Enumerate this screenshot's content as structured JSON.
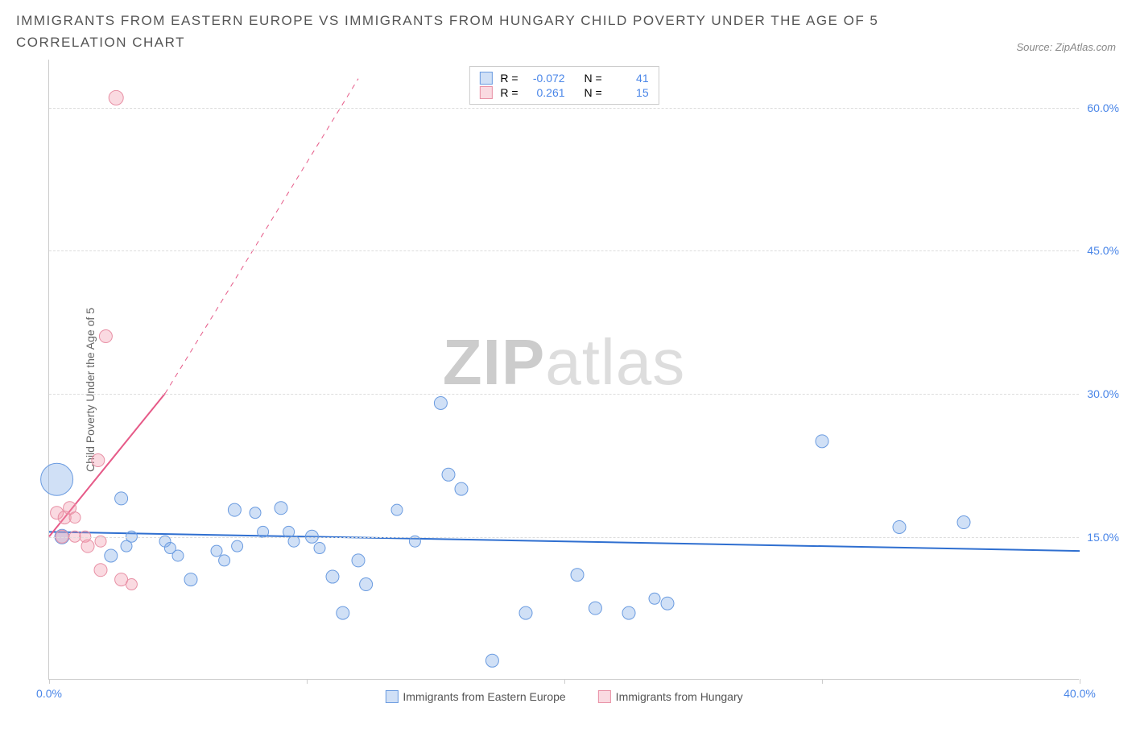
{
  "title": "IMMIGRANTS FROM EASTERN EUROPE VS IMMIGRANTS FROM HUNGARY CHILD POVERTY UNDER THE AGE OF 5 CORRELATION CHART",
  "source_label": "Source: ZipAtlas.com",
  "y_axis_label": "Child Poverty Under the Age of 5",
  "watermark_zip": "ZIP",
  "watermark_atlas": "atlas",
  "chart": {
    "type": "scatter",
    "xlim": [
      0,
      40
    ],
    "ylim": [
      0,
      65
    ],
    "x_ticks": [
      0,
      10,
      20,
      30,
      40
    ],
    "x_tick_labels": [
      "0.0%",
      "",
      "",
      "",
      "40.0%"
    ],
    "y_grid": [
      15,
      30,
      45,
      60
    ],
    "y_grid_labels": [
      "15.0%",
      "30.0%",
      "45.0%",
      "60.0%"
    ],
    "grid_color": "#dddddd",
    "axis_color": "#cccccc",
    "background_color": "#ffffff"
  },
  "series": [
    {
      "name": "Immigrants from Eastern Europe",
      "fill": "rgba(120,165,230,0.35)",
      "stroke": "#6a9be0",
      "trend_color": "#2f6fd0",
      "trend_width": 2,
      "trend_dash": "none",
      "trend": {
        "x1": 0,
        "y1": 15.5,
        "x2": 40,
        "y2": 13.5
      },
      "stats": {
        "R": "-0.072",
        "N": "41"
      },
      "points": [
        {
          "x": 0.3,
          "y": 21,
          "r": 20
        },
        {
          "x": 0.5,
          "y": 15,
          "r": 9
        },
        {
          "x": 2.8,
          "y": 19,
          "r": 8
        },
        {
          "x": 3.2,
          "y": 15,
          "r": 7
        },
        {
          "x": 2.4,
          "y": 13,
          "r": 8
        },
        {
          "x": 3.0,
          "y": 14,
          "r": 7
        },
        {
          "x": 4.5,
          "y": 14.5,
          "r": 7
        },
        {
          "x": 4.7,
          "y": 13.8,
          "r": 7
        },
        {
          "x": 5.0,
          "y": 13.0,
          "r": 7
        },
        {
          "x": 5.5,
          "y": 10.5,
          "r": 8
        },
        {
          "x": 6.5,
          "y": 13.5,
          "r": 7
        },
        {
          "x": 6.8,
          "y": 12.5,
          "r": 7
        },
        {
          "x": 7.2,
          "y": 17.8,
          "r": 8
        },
        {
          "x": 7.3,
          "y": 14.0,
          "r": 7
        },
        {
          "x": 8.0,
          "y": 17.5,
          "r": 7
        },
        {
          "x": 8.3,
          "y": 15.5,
          "r": 7
        },
        {
          "x": 9.0,
          "y": 18.0,
          "r": 8
        },
        {
          "x": 9.3,
          "y": 15.5,
          "r": 7
        },
        {
          "x": 9.5,
          "y": 14.5,
          "r": 7
        },
        {
          "x": 10.2,
          "y": 15.0,
          "r": 8
        },
        {
          "x": 10.5,
          "y": 13.8,
          "r": 7
        },
        {
          "x": 11.0,
          "y": 10.8,
          "r": 8
        },
        {
          "x": 11.4,
          "y": 7.0,
          "r": 8
        },
        {
          "x": 12.0,
          "y": 12.5,
          "r": 8
        },
        {
          "x": 12.3,
          "y": 10.0,
          "r": 8
        },
        {
          "x": 13.5,
          "y": 17.8,
          "r": 7
        },
        {
          "x": 14.2,
          "y": 14.5,
          "r": 7
        },
        {
          "x": 15.2,
          "y": 29.0,
          "r": 8
        },
        {
          "x": 15.5,
          "y": 21.5,
          "r": 8
        },
        {
          "x": 16.0,
          "y": 20.0,
          "r": 8
        },
        {
          "x": 17.2,
          "y": 2.0,
          "r": 8
        },
        {
          "x": 18.5,
          "y": 7.0,
          "r": 8
        },
        {
          "x": 20.5,
          "y": 11.0,
          "r": 8
        },
        {
          "x": 21.2,
          "y": 7.5,
          "r": 8
        },
        {
          "x": 22.5,
          "y": 7.0,
          "r": 8
        },
        {
          "x": 23.5,
          "y": 8.5,
          "r": 7
        },
        {
          "x": 24.0,
          "y": 8.0,
          "r": 8
        },
        {
          "x": 30.0,
          "y": 25.0,
          "r": 8
        },
        {
          "x": 33.0,
          "y": 16.0,
          "r": 8
        },
        {
          "x": 35.5,
          "y": 16.5,
          "r": 8
        }
      ]
    },
    {
      "name": "Immigrants from Hungary",
      "fill": "rgba(240,150,170,0.35)",
      "stroke": "#e890a5",
      "trend_color": "#e65a88",
      "trend_width": 2,
      "trend_dash": "solid_then_dash",
      "trend": {
        "x1": 0,
        "y1": 15,
        "x2_solid": 4.5,
        "y2_solid": 30,
        "x2": 12,
        "y2": 63
      },
      "stats": {
        "R": "0.261",
        "N": "15"
      },
      "points": [
        {
          "x": 0.3,
          "y": 17.5,
          "r": 8
        },
        {
          "x": 0.6,
          "y": 17.0,
          "r": 8
        },
        {
          "x": 0.8,
          "y": 18.0,
          "r": 8
        },
        {
          "x": 0.5,
          "y": 15.0,
          "r": 8
        },
        {
          "x": 1.0,
          "y": 17.0,
          "r": 7
        },
        {
          "x": 1.0,
          "y": 15.0,
          "r": 7
        },
        {
          "x": 1.4,
          "y": 15.0,
          "r": 7
        },
        {
          "x": 1.5,
          "y": 14.0,
          "r": 8
        },
        {
          "x": 1.9,
          "y": 23.0,
          "r": 8
        },
        {
          "x": 2.0,
          "y": 11.5,
          "r": 8
        },
        {
          "x": 2.0,
          "y": 14.5,
          "r": 7
        },
        {
          "x": 2.2,
          "y": 36.0,
          "r": 8
        },
        {
          "x": 2.8,
          "y": 10.5,
          "r": 8
        },
        {
          "x": 3.2,
          "y": 10.0,
          "r": 7
        },
        {
          "x": 2.6,
          "y": 61.0,
          "r": 9
        }
      ]
    }
  ],
  "legend_labels": {
    "R_label": "R =",
    "N_label": "N ="
  }
}
